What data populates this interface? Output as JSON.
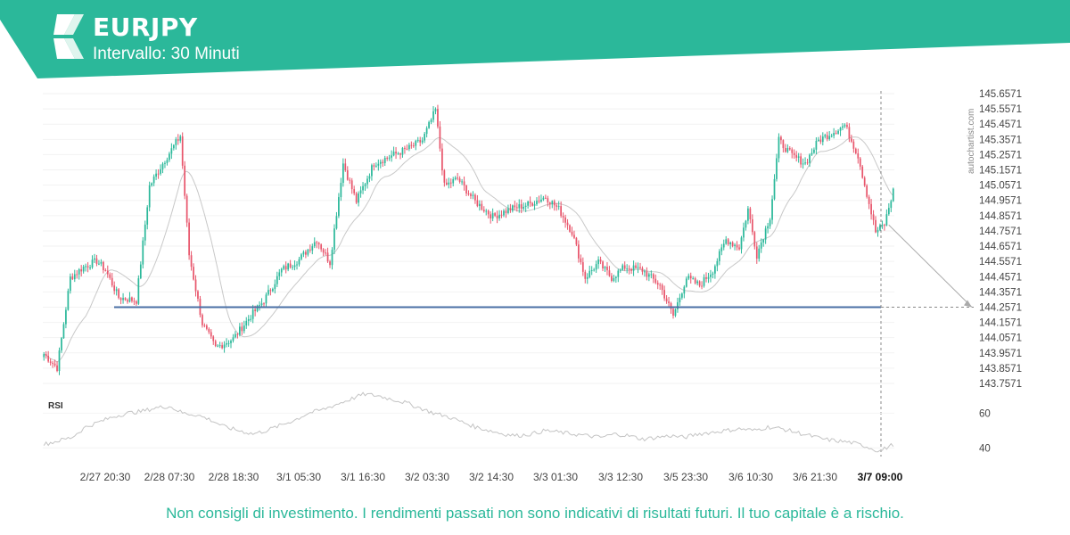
{
  "header": {
    "symbol": "EURJPY",
    "interval": "Intervallo: 30 Minuti",
    "accent_color": "#2bb89a",
    "logo_icon": "autochartist-chevron-logo"
  },
  "watermark": "autochartist.com",
  "disclaimer": "Non consigli di investimento. I rendimenti passati non sono indicativi di risultati futuri. Il tuo capitale è a rischio.",
  "chart_data": [
    {
      "type": "candlestick",
      "title": "EURJPY",
      "x_tick_labels": [
        "2/27 20:30",
        "2/28 07:30",
        "2/28 18:30",
        "3/1 05:30",
        "3/1 16:30",
        "3/2 03:30",
        "3/2 14:30",
        "3/3 01:30",
        "3/3 12:30",
        "3/5 23:30",
        "3/6 10:30",
        "3/6 21:30",
        "3/7 09:00"
      ],
      "highlighted_x_label": "3/7 09:00",
      "y_tick_labels": [
        "145.6571",
        "145.5571",
        "145.4571",
        "145.3571",
        "145.2571",
        "145.1571",
        "145.0571",
        "144.9571",
        "144.8571",
        "144.7571",
        "144.6571",
        "144.5571",
        "144.4571",
        "144.3571",
        "144.2571",
        "144.1571",
        "144.0571",
        "143.9571",
        "143.8571",
        "143.7571"
      ],
      "ylim": [
        143.7571,
        145.6571
      ],
      "candle_colors": {
        "up": "#2bb89a",
        "down": "#e8566c"
      },
      "price_anchors": [
        [
          0,
          143.95
        ],
        [
          6,
          143.86
        ],
        [
          8,
          144.05
        ],
        [
          12,
          144.45
        ],
        [
          18,
          144.52
        ],
        [
          24,
          144.56
        ],
        [
          28,
          144.5
        ],
        [
          34,
          144.32
        ],
        [
          42,
          144.3
        ],
        [
          48,
          145.05
        ],
        [
          54,
          145.2
        ],
        [
          62,
          145.38
        ],
        [
          66,
          144.6
        ],
        [
          72,
          144.15
        ],
        [
          78,
          143.99
        ],
        [
          86,
          144.05
        ],
        [
          94,
          144.2
        ],
        [
          100,
          144.3
        ],
        [
          108,
          144.5
        ],
        [
          116,
          144.57
        ],
        [
          124,
          144.7
        ],
        [
          130,
          144.55
        ],
        [
          136,
          145.2
        ],
        [
          142,
          144.95
        ],
        [
          150,
          145.2
        ],
        [
          158,
          145.25
        ],
        [
          166,
          145.3
        ],
        [
          172,
          145.35
        ],
        [
          178,
          145.55
        ],
        [
          182,
          145.05
        ],
        [
          188,
          145.1
        ],
        [
          196,
          144.95
        ],
        [
          204,
          144.85
        ],
        [
          212,
          144.9
        ],
        [
          220,
          144.93
        ],
        [
          228,
          144.98
        ],
        [
          234,
          144.9
        ],
        [
          240,
          144.75
        ],
        [
          246,
          144.45
        ],
        [
          252,
          144.55
        ],
        [
          258,
          144.45
        ],
        [
          264,
          144.52
        ],
        [
          272,
          144.5
        ],
        [
          280,
          144.4
        ],
        [
          286,
          144.2
        ],
        [
          292,
          144.45
        ],
        [
          298,
          144.4
        ],
        [
          304,
          144.5
        ],
        [
          310,
          144.7
        ],
        [
          316,
          144.65
        ],
        [
          320,
          144.9
        ],
        [
          324,
          144.6
        ],
        [
          330,
          144.85
        ],
        [
          334,
          145.35
        ],
        [
          340,
          145.25
        ],
        [
          346,
          145.2
        ],
        [
          352,
          145.35
        ],
        [
          358,
          145.4
        ],
        [
          364,
          145.45
        ],
        [
          370,
          145.25
        ],
        [
          374,
          145.0
        ],
        [
          378,
          144.75
        ],
        [
          382,
          144.8
        ],
        [
          386,
          145.02
        ]
      ],
      "support_level": 144.2571,
      "moving_average": true,
      "forecast_arrow_target": 144.2571
    },
    {
      "type": "line",
      "title": "RSI",
      "y_tick_labels": [
        "60",
        "40"
      ],
      "ylim": [
        35,
        72
      ],
      "reference_levels": [
        60,
        40
      ],
      "values": [
        42,
        44,
        46,
        52,
        55,
        58,
        60,
        61,
        63,
        64,
        60,
        59,
        56,
        52,
        50,
        48,
        50,
        53,
        56,
        60,
        62,
        65,
        68,
        71,
        70,
        68,
        66,
        63,
        60,
        58,
        55,
        52,
        50,
        48,
        47,
        48,
        50,
        49,
        48,
        47,
        46,
        48,
        47,
        45,
        46,
        47,
        46,
        48,
        49,
        50,
        51,
        50,
        52,
        51,
        49,
        47,
        45,
        44,
        43,
        41,
        38,
        42
      ]
    }
  ]
}
